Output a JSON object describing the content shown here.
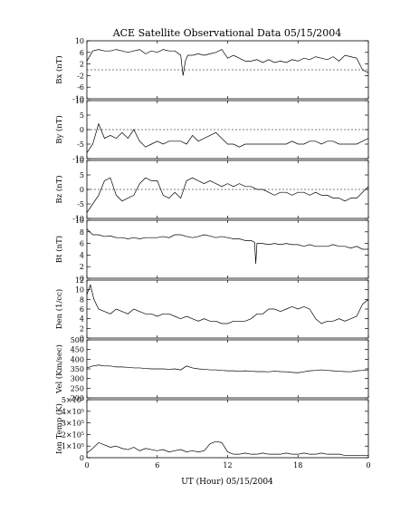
{
  "chart_data": {
    "type": "line",
    "title": "ACE Satellite Observational Data   05/15/2004",
    "xlabel": "UT (Hour)   05/15/2004",
    "x_ticks": [
      "0",
      "6",
      "12",
      "18",
      "0"
    ],
    "xlim": [
      0,
      24
    ],
    "panels": [
      {
        "ylabel": "Bx (nT)",
        "ylim": [
          -10,
          10
        ],
        "yticks": [
          "10",
          "6",
          "2",
          "-2",
          "-6",
          "-10"
        ],
        "ytick_values": [
          10,
          6,
          2,
          -2,
          -6,
          -10
        ],
        "zero_line": true,
        "series": [
          {
            "x": [
              0,
              0.5,
              1,
              1.5,
              2,
              2.5,
              3,
              3.5,
              4,
              4.5,
              5,
              5.5,
              6,
              6.5,
              7,
              7.5,
              8,
              8.2,
              8.4,
              8.6,
              9,
              9.5,
              10,
              10.5,
              11,
              11.5,
              12,
              12.5,
              13,
              13.5,
              14,
              14.5,
              15,
              15.5,
              16,
              16.5,
              17,
              17.5,
              18,
              18.5,
              19,
              19.5,
              20,
              20.5,
              21,
              21.5,
              22,
              22.5,
              23,
              23.5,
              24
            ],
            "y": [
              3,
              6.5,
              7,
              6.5,
              6.5,
              7,
              6.5,
              6,
              6.5,
              7,
              5.5,
              6.5,
              6,
              7,
              6.5,
              6.5,
              5,
              -2,
              3,
              5,
              5,
              5.5,
              5,
              5.5,
              6,
              7,
              4,
              5,
              4,
              3,
              3,
              3.5,
              2.5,
              3.5,
              2.5,
              3,
              2.5,
              3.5,
              3,
              4,
              3.5,
              4.5,
              4,
              3.5,
              4.5,
              3,
              5,
              4.5,
              4,
              0,
              -1
            ]
          }
        ]
      },
      {
        "ylabel": "By (nT)",
        "ylim": [
          -10,
          10
        ],
        "yticks": [
          "10",
          "5",
          "0",
          "-5",
          "-10"
        ],
        "ytick_values": [
          10,
          5,
          0,
          -5,
          -10
        ],
        "zero_line": true,
        "series": [
          {
            "x": [
              0,
              0.5,
              1,
              1.5,
              2,
              2.5,
              3,
              3.5,
              4,
              4.5,
              5,
              5.5,
              6,
              6.5,
              7,
              7.5,
              8,
              8.5,
              9,
              9.5,
              10,
              10.5,
              11,
              11.5,
              12,
              12.5,
              13,
              13.5,
              14,
              14.5,
              15,
              15.5,
              16,
              16.5,
              17,
              17.5,
              18,
              18.5,
              19,
              19.5,
              20,
              20.5,
              21,
              21.5,
              22,
              22.5,
              23,
              23.5,
              24
            ],
            "y": [
              -8,
              -5,
              2,
              -3,
              -2,
              -3,
              -1,
              -3,
              0,
              -4,
              -6,
              -5,
              -4,
              -5,
              -4,
              -4,
              -4,
              -5,
              -2,
              -4,
              -3,
              -2,
              -1,
              -3,
              -5,
              -5,
              -6,
              -5,
              -5,
              -5,
              -5,
              -5,
              -5,
              -5,
              -5,
              -4,
              -5,
              -5,
              -4,
              -4,
              -5,
              -4,
              -4,
              -5,
              -5,
              -5,
              -5,
              -4,
              -3
            ]
          }
        ]
      },
      {
        "ylabel": "Bz (nT)",
        "ylim": [
          -10,
          10
        ],
        "yticks": [
          "10",
          "5",
          "0",
          "-5",
          "-10"
        ],
        "ytick_values": [
          10,
          5,
          0,
          -5,
          -10
        ],
        "zero_line": true,
        "series": [
          {
            "x": [
              0,
              0.5,
              1,
              1.5,
              2,
              2.5,
              3,
              3.5,
              4,
              4.5,
              5,
              5.5,
              6,
              6.5,
              7,
              7.5,
              8,
              8.5,
              9,
              9.5,
              10,
              10.5,
              11,
              11.5,
              12,
              12.5,
              13,
              13.5,
              14,
              14.5,
              15,
              15.5,
              16,
              16.5,
              17,
              17.5,
              18,
              18.5,
              19,
              19.5,
              20,
              20.5,
              21,
              21.5,
              22,
              22.5,
              23,
              23.5,
              24
            ],
            "y": [
              -8,
              -5,
              -2,
              3,
              4,
              -2,
              -4,
              -3,
              -2,
              2,
              4,
              3,
              3,
              -2,
              -3,
              -1,
              -3,
              3,
              4,
              3,
              2,
              3,
              2,
              1,
              2,
              1,
              2,
              1,
              1,
              0,
              0,
              -1,
              -2,
              -1,
              -1,
              -2,
              -1,
              -1,
              -2,
              -1,
              -2,
              -2,
              -3,
              -3,
              -4,
              -3,
              -3,
              -1,
              1
            ]
          }
        ]
      },
      {
        "ylabel": "Bt (nT)",
        "ylim": [
          0,
          10
        ],
        "yticks": [
          "10",
          "8",
          "6",
          "4",
          "2",
          "0"
        ],
        "ytick_values": [
          10,
          8,
          6,
          4,
          2,
          0
        ],
        "zero_line": false,
        "series": [
          {
            "x": [
              0,
              0.5,
              1,
              1.5,
              2,
              2.5,
              3,
              3.5,
              4,
              4.5,
              5,
              5.5,
              6,
              6.5,
              7,
              7.5,
              8,
              8.5,
              9,
              9.5,
              10,
              10.5,
              11,
              11.5,
              12,
              12.5,
              13,
              13.5,
              14,
              14.3,
              14.4,
              14.5,
              15,
              15.5,
              16,
              16.5,
              17,
              17.5,
              18,
              18.5,
              19,
              19.5,
              20,
              20.5,
              21,
              21.5,
              22,
              22.5,
              23,
              23.5,
              24
            ],
            "y": [
              8.5,
              7.5,
              7.5,
              7.2,
              7.3,
              7,
              7,
              6.8,
              7,
              6.8,
              7,
              7,
              7,
              7.2,
              7,
              7.5,
              7.5,
              7.2,
              7,
              7.2,
              7.5,
              7.3,
              7,
              7.2,
              7,
              6.8,
              6.8,
              6.5,
              6.5,
              6.2,
              2.5,
              6,
              6,
              5.8,
              6,
              5.8,
              6,
              5.8,
              5.8,
              5.5,
              5.8,
              5.5,
              5.5,
              5.5,
              5.8,
              5.5,
              5.5,
              5.2,
              5.5,
              5,
              5
            ]
          }
        ]
      },
      {
        "ylabel": "Den (1/cc)",
        "ylim": [
          0,
          12
        ],
        "yticks": [
          "12",
          "10",
          "8",
          "6",
          "4",
          "2",
          "0"
        ],
        "ytick_values": [
          12,
          10,
          8,
          6,
          4,
          2,
          0
        ],
        "zero_line": false,
        "series": [
          {
            "x": [
              0,
              0.3,
              0.6,
              1,
              1.5,
              2,
              2.5,
              3,
              3.5,
              4,
              4.5,
              5,
              5.5,
              6,
              6.5,
              7,
              7.5,
              8,
              8.5,
              9,
              9.5,
              10,
              10.5,
              11,
              11.5,
              12,
              12.5,
              13,
              13.5,
              14,
              14.5,
              15,
              15.5,
              16,
              16.5,
              17,
              17.5,
              18,
              18.5,
              19,
              19.5,
              20,
              20.5,
              21,
              21.5,
              22,
              22.5,
              23,
              23.5,
              24
            ],
            "y": [
              9,
              11,
              8,
              6,
              5.5,
              5,
              6,
              5.5,
              5,
              6,
              5.5,
              5,
              5,
              4.5,
              5,
              5,
              4.5,
              4,
              4.5,
              4,
              3.5,
              4,
              3.5,
              3.5,
              3,
              3,
              3.5,
              3.5,
              3.5,
              4,
              5,
              5,
              6,
              6,
              5.5,
              6,
              6.5,
              6,
              6.5,
              6,
              4,
              3,
              3.5,
              3.5,
              4,
              3.5,
              4,
              4.5,
              7,
              8
            ]
          }
        ]
      },
      {
        "ylabel": "Vel (Km/sec)",
        "ylim": [
          200,
          500
        ],
        "yticks": [
          "500",
          "450",
          "400",
          "350",
          "300",
          "250",
          "200"
        ],
        "ytick_values": [
          500,
          450,
          400,
          350,
          300,
          250,
          200
        ],
        "zero_line": false,
        "series": [
          {
            "x": [
              0,
              0.5,
              1,
              1.5,
              2,
              2.5,
              3,
              3.5,
              4,
              4.5,
              5,
              5.5,
              6,
              6.5,
              7,
              7.5,
              8,
              8.5,
              9,
              9.5,
              10,
              10.5,
              11,
              11.5,
              12,
              12.5,
              13,
              13.5,
              14,
              14.5,
              15,
              15.5,
              16,
              16.5,
              17,
              17.5,
              18,
              18.5,
              19,
              19.5,
              20,
              20.5,
              21,
              21.5,
              22,
              22.5,
              23,
              23.5,
              24
            ],
            "y": [
              355,
              365,
              370,
              365,
              365,
              360,
              360,
              358,
              355,
              355,
              352,
              350,
              350,
              350,
              348,
              350,
              345,
              365,
              355,
              350,
              348,
              345,
              345,
              342,
              340,
              340,
              338,
              340,
              338,
              336,
              336,
              335,
              338,
              336,
              335,
              332,
              330,
              335,
              340,
              342,
              345,
              342,
              340,
              338,
              336,
              335,
              340,
              342,
              345
            ]
          }
        ]
      },
      {
        "ylabel": "Ion Temp (K)",
        "ylim": [
          0,
          5
        ],
        "ytick_unit": "×10⁵",
        "yticks": [
          "5×10⁵",
          "4×10⁵",
          "3×10⁵",
          "2×10⁵",
          "1×10⁵",
          "0"
        ],
        "ytick_values": [
          5,
          4,
          3,
          2,
          1,
          0
        ],
        "zero_line": false,
        "series": [
          {
            "x": [
              0,
              0.5,
              1,
              1.5,
              2,
              2.5,
              3,
              3.5,
              4,
              4.5,
              5,
              5.5,
              6,
              6.5,
              7,
              7.5,
              8,
              8.5,
              9,
              9.5,
              10,
              10.5,
              11,
              11.5,
              12,
              12.5,
              13,
              13.5,
              14,
              14.5,
              15,
              15.5,
              16,
              16.5,
              17,
              17.5,
              18,
              18.5,
              19,
              19.5,
              20,
              20.5,
              21,
              21.5,
              22,
              22.5,
              23,
              23.5,
              24
            ],
            "y": [
              0.4,
              0.8,
              1.3,
              1.1,
              0.9,
              1.0,
              0.8,
              0.7,
              0.9,
              0.6,
              0.8,
              0.7,
              0.6,
              0.7,
              0.5,
              0.6,
              0.7,
              0.5,
              0.6,
              0.5,
              0.6,
              1.2,
              1.4,
              1.3,
              0.5,
              0.3,
              0.3,
              0.4,
              0.3,
              0.3,
              0.4,
              0.3,
              0.3,
              0.3,
              0.4,
              0.3,
              0.3,
              0.4,
              0.3,
              0.3,
              0.4,
              0.3,
              0.3,
              0.3,
              0.2,
              0.2,
              0.2,
              0.2,
              0.2
            ]
          }
        ]
      }
    ]
  }
}
